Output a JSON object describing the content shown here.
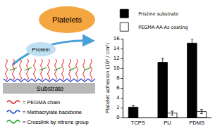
{
  "chart_data": {
    "type": "bar",
    "y_label": "Platelet adhesion (10⁵ / cm²)",
    "categories": [
      "TCPS",
      "PU",
      "PDMS"
    ],
    "series": [
      {
        "name": "Pristine substrate",
        "color": "#000000",
        "values": [
          2.1,
          11.2,
          15.1
        ],
        "errors": [
          0.4,
          0.8,
          0.9
        ]
      },
      {
        "name": "PEGMA-AA-Az coating",
        "color": "#ffffff",
        "values": [
          null,
          0.9,
          1.2
        ],
        "errors": [
          null,
          0.4,
          0.4
        ]
      }
    ],
    "ylim": [
      0,
      16
    ],
    "yticks": [
      0,
      2,
      4,
      6,
      8,
      10,
      12,
      14,
      16
    ],
    "grid": false,
    "legend": "top left"
  },
  "diagram": {
    "platelets": "Platelets",
    "protein": "Protein",
    "substrate": "Substrate",
    "key": [
      {
        "color": "#e02020",
        "text": "= PEGMA chain"
      },
      {
        "color": "#2040d0",
        "text": "= Methacrylate backbone"
      },
      {
        "color": "#20a020",
        "text": "= Crosslink by nitrene group"
      }
    ]
  }
}
